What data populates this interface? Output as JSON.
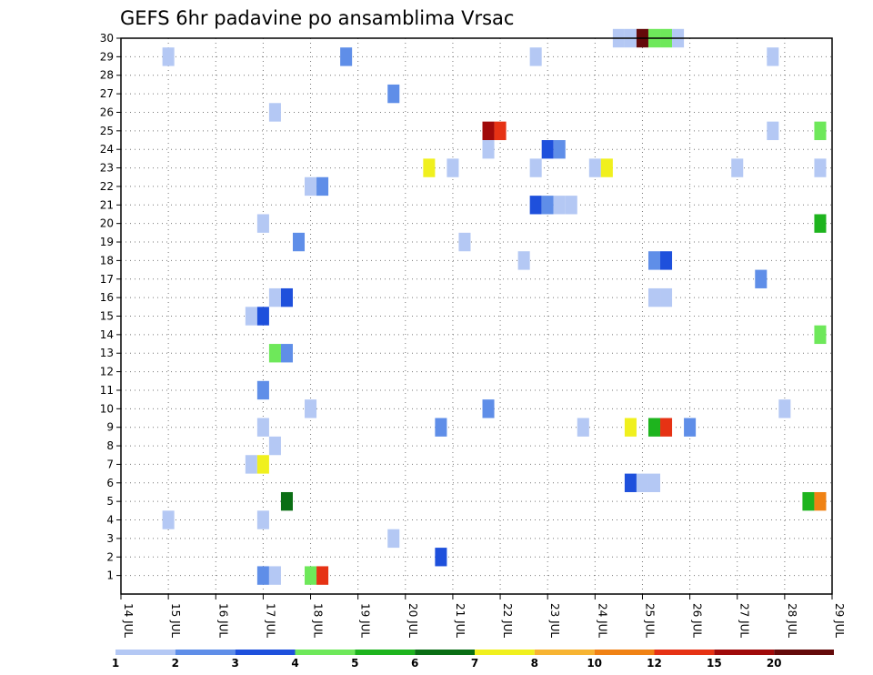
{
  "chart_data": {
    "type": "heatmap",
    "title": "GEFS 6hr padavine po ansamblima Vrsac",
    "xlabel": "",
    "ylabel": "",
    "x_tick_labels": [
      "14 JUL",
      "15 JUL",
      "16 JUL",
      "17 JUL",
      "18 JUL",
      "19 JUL",
      "20 JUL",
      "21 JUL",
      "22 JUL",
      "23 JUL",
      "24 JUL",
      "25 JUL",
      "26 JUL",
      "27 JUL",
      "28 JUL",
      "29 JUL"
    ],
    "y_tick_labels": [
      "1",
      "2",
      "3",
      "4",
      "5",
      "6",
      "7",
      "8",
      "9",
      "10",
      "11",
      "12",
      "13",
      "14",
      "15",
      "16",
      "17",
      "18",
      "19",
      "20",
      "21",
      "22",
      "23",
      "24",
      "25",
      "26",
      "27",
      "28",
      "29",
      "30"
    ],
    "x_range_days": [
      0,
      15
    ],
    "y_range": [
      0,
      30
    ],
    "grid": true,
    "legend_placement": "bottom",
    "legend": {
      "labels": [
        "1",
        "2",
        "3",
        "4",
        "5",
        "6",
        "7",
        "8",
        "10",
        "12",
        "15",
        "20"
      ],
      "colors": [
        "#b4c8f4",
        "#5f8ee8",
        "#1e50dc",
        "#6ee85a",
        "#1eb41e",
        "#0a6e14",
        "#f0f01e",
        "#f7b432",
        "#f08214",
        "#e63214",
        "#a00a0a",
        "#640a0a"
      ]
    },
    "cells": [
      [
        10.5,
        30,
        0
      ],
      [
        10.75,
        30,
        0
      ],
      [
        11,
        30,
        11
      ],
      [
        11.25,
        30,
        3
      ],
      [
        11.5,
        30,
        3
      ],
      [
        11.75,
        30,
        0
      ],
      [
        1,
        29,
        0
      ],
      [
        4.75,
        29,
        1
      ],
      [
        8.75,
        29,
        0
      ],
      [
        13.75,
        29,
        0
      ],
      [
        5.75,
        27,
        1
      ],
      [
        3.25,
        26,
        0
      ],
      [
        7.75,
        25,
        10
      ],
      [
        8,
        25,
        9
      ],
      [
        13.75,
        25,
        0
      ],
      [
        14.75,
        25,
        3
      ],
      [
        7.75,
        24,
        0
      ],
      [
        9,
        24,
        2
      ],
      [
        9.25,
        24,
        1
      ],
      [
        6.5,
        23,
        6
      ],
      [
        7,
        23,
        0
      ],
      [
        8.75,
        23,
        0
      ],
      [
        10,
        23,
        0
      ],
      [
        10.25,
        23,
        6
      ],
      [
        13,
        23,
        0
      ],
      [
        14.75,
        23,
        0
      ],
      [
        4,
        22,
        0
      ],
      [
        4.25,
        22,
        1
      ],
      [
        8.75,
        21,
        2
      ],
      [
        9,
        21,
        1
      ],
      [
        9.25,
        21,
        0
      ],
      [
        9.5,
        21,
        0
      ],
      [
        3,
        20,
        0
      ],
      [
        14.75,
        20,
        4
      ],
      [
        3.75,
        19,
        1
      ],
      [
        7.25,
        19,
        0
      ],
      [
        8.5,
        18,
        0
      ],
      [
        11.25,
        18,
        1
      ],
      [
        11.5,
        18,
        2
      ],
      [
        13.5,
        17,
        1
      ],
      [
        3.25,
        16,
        0
      ],
      [
        3.5,
        16,
        2
      ],
      [
        11.25,
        16,
        0
      ],
      [
        11.5,
        16,
        0
      ],
      [
        2.75,
        15,
        0
      ],
      [
        3,
        15,
        2
      ],
      [
        14.75,
        14,
        3
      ],
      [
        3.25,
        13,
        3
      ],
      [
        3.5,
        13,
        1
      ],
      [
        3,
        11,
        1
      ],
      [
        4,
        10,
        0
      ],
      [
        7.75,
        10,
        1
      ],
      [
        14,
        10,
        0
      ],
      [
        3,
        9,
        0
      ],
      [
        6.75,
        9,
        1
      ],
      [
        9.75,
        9,
        0
      ],
      [
        10.75,
        9,
        6
      ],
      [
        11.25,
        9,
        4
      ],
      [
        11.5,
        9,
        9
      ],
      [
        12,
        9,
        1
      ],
      [
        3.25,
        8,
        0
      ],
      [
        2.75,
        7,
        0
      ],
      [
        3,
        7,
        6
      ],
      [
        10.75,
        6,
        2
      ],
      [
        11,
        6,
        0
      ],
      [
        11.25,
        6,
        0
      ],
      [
        3.5,
        5,
        5
      ],
      [
        14.5,
        5,
        4
      ],
      [
        14.75,
        5,
        8
      ],
      [
        1,
        4,
        0
      ],
      [
        3,
        4,
        0
      ],
      [
        5.75,
        3,
        0
      ],
      [
        6.75,
        2,
        2
      ],
      [
        3,
        1,
        1
      ],
      [
        3.25,
        1,
        0
      ],
      [
        4,
        1,
        3
      ],
      [
        4.25,
        1,
        9
      ]
    ]
  }
}
